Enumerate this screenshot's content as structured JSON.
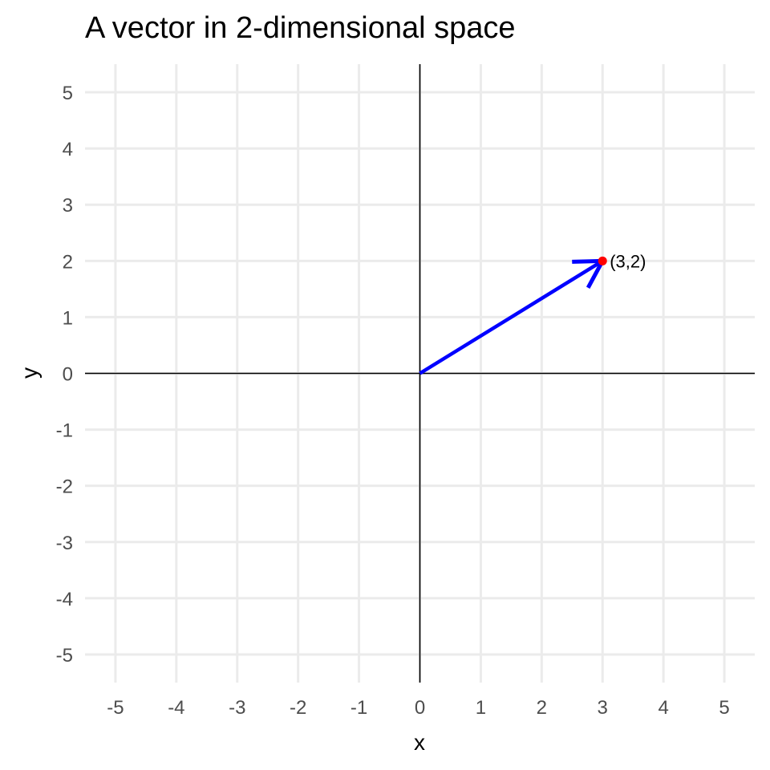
{
  "chart_data": {
    "type": "vector",
    "title": "A vector in 2-dimensional space",
    "xlabel": "x",
    "ylabel": "y",
    "xlim": [
      -5.5,
      5.5
    ],
    "ylim": [
      -5.5,
      5.5
    ],
    "xticks": [
      "-5",
      "-4",
      "-3",
      "-2",
      "-1",
      "0",
      "1",
      "2",
      "3",
      "4",
      "5"
    ],
    "yticks": [
      "-5",
      "-4",
      "-3",
      "-2",
      "-1",
      "0",
      "1",
      "2",
      "3",
      "4",
      "5"
    ],
    "grid": true,
    "vectors": [
      {
        "from": [
          0,
          0
        ],
        "to": [
          3,
          2
        ],
        "color": "#0000ff"
      }
    ],
    "points": [
      {
        "x": 3,
        "y": 2,
        "label": "(3,2)",
        "color": "#ff0000"
      }
    ],
    "reference_lines": {
      "x": 0,
      "y": 0,
      "color": "#000000"
    },
    "colors": {
      "grid": "#ebebeb",
      "tick_text": "#4d4d4d",
      "background": "#ffffff"
    }
  }
}
